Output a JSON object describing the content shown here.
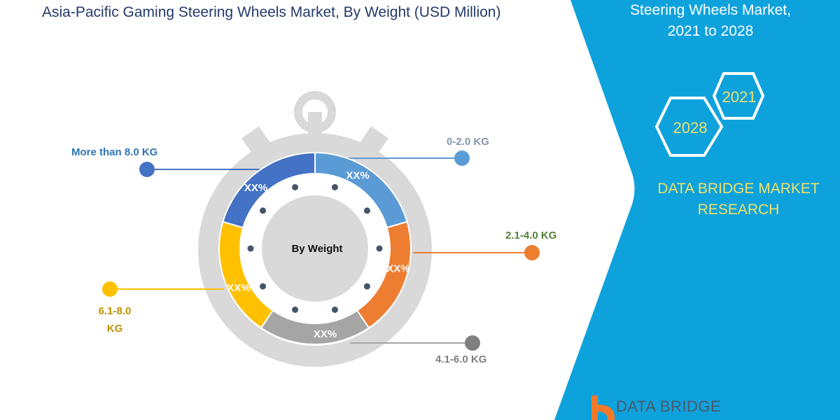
{
  "title": "Asia-Pacific Gaming Steering Wheels Market, By Weight (USD Million)",
  "side_panel": {
    "title_lines": [
      "Steering Wheels Market,",
      "2021 to 2028"
    ],
    "hex_years": [
      "2021",
      "2028"
    ],
    "brand_lines": [
      "DATA BRIDGE MARKET",
      "RESEARCH"
    ],
    "logo_text": "DATA BRIDGE",
    "color": "#0ea2dd",
    "text_accent": "#f0e06a"
  },
  "chart_data": {
    "type": "pie",
    "style": "donut",
    "center_label": "By Weight",
    "categories": [
      "0-2.0 KG",
      "2.1-4.0 KG",
      "4.1-6.0 KG",
      "6.1-8.0 KG",
      "More than 8.0 KG"
    ],
    "values": [
      20.5,
      20,
      19,
      20,
      20.5
    ],
    "data_labels": [
      "XX%",
      "XX%",
      "XX%",
      "XX%",
      "XX%"
    ],
    "colors": [
      "#5b9bd5",
      "#ed7d31",
      "#a5a5a5",
      "#ffc000",
      "#4472c4"
    ],
    "label_colors": [
      "#8496b0",
      "#548235",
      "#7f7f7f",
      "#bf9000",
      "#2e75b6"
    ],
    "legend": "callouts"
  }
}
